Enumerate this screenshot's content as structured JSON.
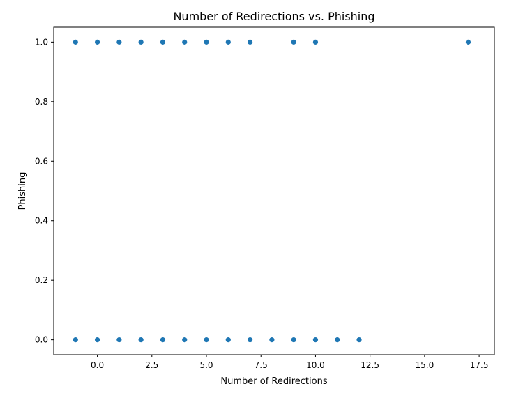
{
  "chart_data": {
    "type": "scatter",
    "title": "Number of Redirections vs. Phishing",
    "xlabel": "Number of Redirections",
    "ylabel": "Phishing",
    "xlim": [
      -2.0,
      18.2
    ],
    "ylim": [
      -0.05,
      1.05
    ],
    "xticks": [
      0.0,
      2.5,
      5.0,
      7.5,
      10.0,
      12.5,
      15.0,
      17.5
    ],
    "xtick_labels": [
      "0.0",
      "2.5",
      "5.0",
      "7.5",
      "10.0",
      "12.5",
      "15.0",
      "17.5"
    ],
    "yticks": [
      0.0,
      0.2,
      0.4,
      0.6,
      0.8,
      1.0
    ],
    "ytick_labels": [
      "0.0",
      "0.2",
      "0.4",
      "0.6",
      "0.8",
      "1.0"
    ],
    "grid": false,
    "legend": false,
    "point_color": "#1f77b4",
    "points": [
      {
        "x": -1,
        "y": 1
      },
      {
        "x": 0,
        "y": 1
      },
      {
        "x": 1,
        "y": 1
      },
      {
        "x": 2,
        "y": 1
      },
      {
        "x": 3,
        "y": 1
      },
      {
        "x": 4,
        "y": 1
      },
      {
        "x": 5,
        "y": 1
      },
      {
        "x": 6,
        "y": 1
      },
      {
        "x": 7,
        "y": 1
      },
      {
        "x": 9,
        "y": 1
      },
      {
        "x": 10,
        "y": 1
      },
      {
        "x": 17,
        "y": 1
      },
      {
        "x": -1,
        "y": 0
      },
      {
        "x": 0,
        "y": 0
      },
      {
        "x": 1,
        "y": 0
      },
      {
        "x": 2,
        "y": 0
      },
      {
        "x": 3,
        "y": 0
      },
      {
        "x": 4,
        "y": 0
      },
      {
        "x": 5,
        "y": 0
      },
      {
        "x": 6,
        "y": 0
      },
      {
        "x": 7,
        "y": 0
      },
      {
        "x": 8,
        "y": 0
      },
      {
        "x": 9,
        "y": 0
      },
      {
        "x": 10,
        "y": 0
      },
      {
        "x": 11,
        "y": 0
      },
      {
        "x": 12,
        "y": 0
      }
    ]
  }
}
